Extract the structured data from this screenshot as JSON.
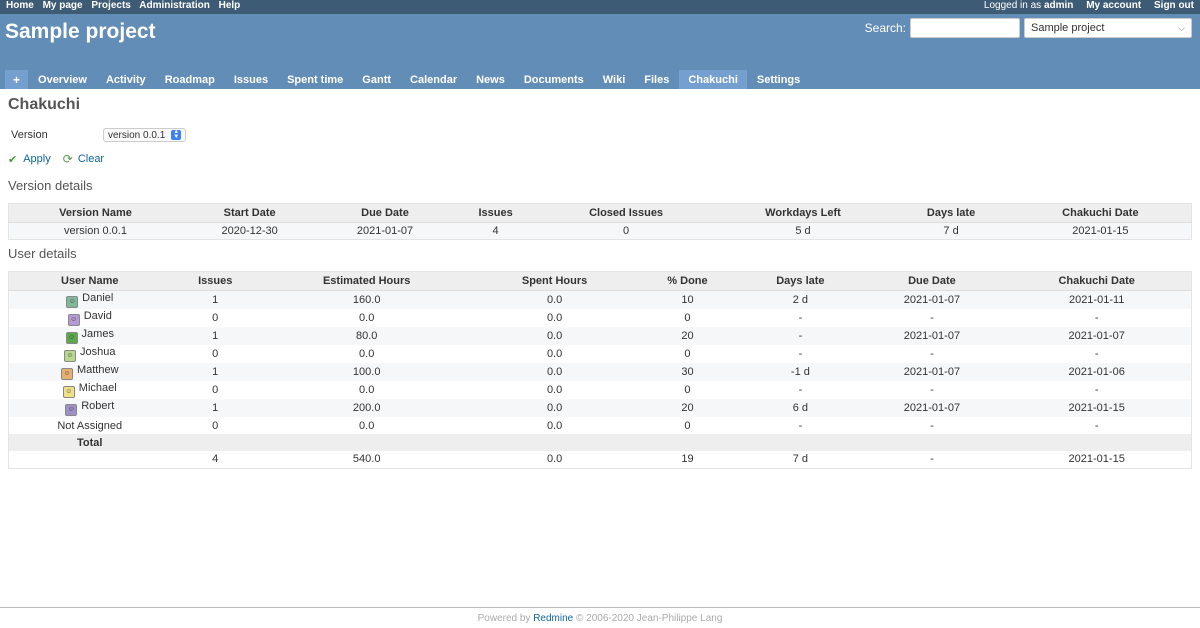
{
  "top_menu": {
    "left": [
      "Home",
      "My page",
      "Projects",
      "Administration",
      "Help"
    ],
    "logged_prefix": "Logged in as",
    "user": "admin",
    "my_account": "My account",
    "sign_out": "Sign out"
  },
  "header": {
    "title": "Sample project",
    "search_label": "Search:",
    "project_jump": "Sample project"
  },
  "main_menu": {
    "new": "+",
    "items": [
      "Overview",
      "Activity",
      "Roadmap",
      "Issues",
      "Spent time",
      "Gantt",
      "Calendar",
      "News",
      "Documents",
      "Wiki",
      "Files",
      "Chakuchi",
      "Settings"
    ],
    "selected": "Chakuchi"
  },
  "page": {
    "title": "Chakuchi",
    "version_label": "Version",
    "version_value": "version 0.0.1",
    "apply": "Apply",
    "clear": "Clear"
  },
  "version_details": {
    "heading": "Version details",
    "columns": [
      "Version Name",
      "Start Date",
      "Due Date",
      "Issues",
      "Closed Issues",
      "Workdays Left",
      "Days late",
      "Chakuchi Date"
    ],
    "row": [
      "version 0.0.1",
      "2020-12-30",
      "2021-01-07",
      "4",
      "0",
      "5 d",
      "7 d",
      "2021-01-15"
    ]
  },
  "user_details": {
    "heading": "User details",
    "columns": [
      "User Name",
      "Issues",
      "Estimated Hours",
      "Spent Hours",
      "% Done",
      "Days late",
      "Due Date",
      "Chakuchi Date"
    ],
    "rows": [
      {
        "name": "Daniel",
        "avatar_color": "#7fb89a",
        "cells": [
          "1",
          "160.0",
          "0.0",
          "10",
          "2 d",
          "2021-01-07",
          "2021-01-11"
        ]
      },
      {
        "name": "David",
        "avatar_color": "#b49ad6",
        "cells": [
          "0",
          "0.0",
          "0.0",
          "0",
          "-",
          "-",
          "-"
        ]
      },
      {
        "name": "James",
        "avatar_color": "#5aa84a",
        "cells": [
          "1",
          "80.0",
          "0.0",
          "20",
          "-",
          "2021-01-07",
          "2021-01-07"
        ]
      },
      {
        "name": "Joshua",
        "avatar_color": "#b8d890",
        "cells": [
          "0",
          "0.0",
          "0.0",
          "0",
          "-",
          "-",
          "-"
        ]
      },
      {
        "name": "Matthew",
        "avatar_color": "#e8b070",
        "cells": [
          "1",
          "100.0",
          "0.0",
          "30",
          "-1 d",
          "2021-01-07",
          "2021-01-06"
        ]
      },
      {
        "name": "Michael",
        "avatar_color": "#f0e08a",
        "cells": [
          "0",
          "0.0",
          "0.0",
          "0",
          "-",
          "-",
          "-"
        ]
      },
      {
        "name": "Robert",
        "avatar_color": "#a090c8",
        "cells": [
          "1",
          "200.0",
          "0.0",
          "20",
          "6 d",
          "2021-01-07",
          "2021-01-15"
        ]
      },
      {
        "name": "Not Assigned",
        "avatar_color": "",
        "cells": [
          "0",
          "0.0",
          "0.0",
          "0",
          "-",
          "-",
          "-"
        ]
      }
    ],
    "total_label": "Total",
    "total_cells": [
      "4",
      "540.0",
      "0.0",
      "19",
      "7 d",
      "-",
      "2021-01-15"
    ]
  },
  "footer": {
    "prefix": "Powered by",
    "link": "Redmine",
    "suffix": "© 2006-2020 Jean-Philippe Lang"
  }
}
